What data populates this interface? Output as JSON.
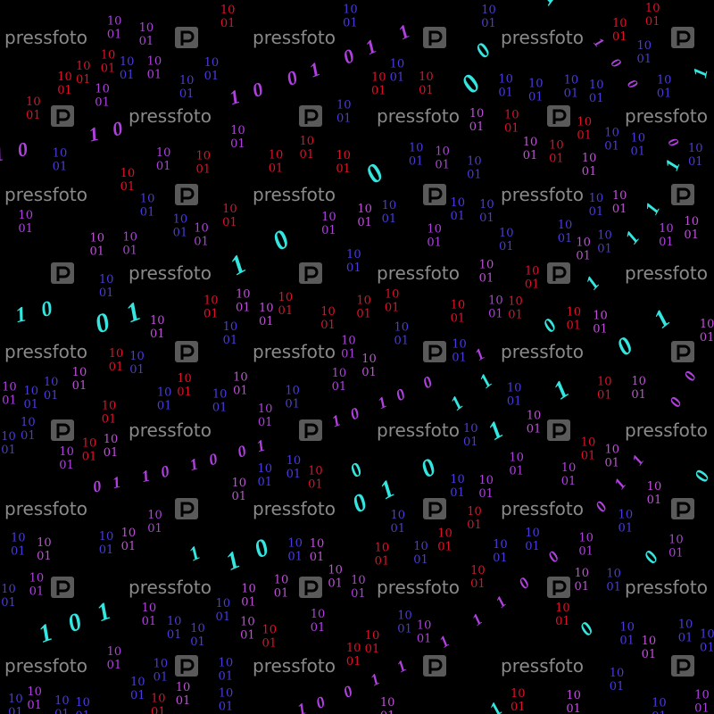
{
  "image": {
    "subject": "binary code streams",
    "background_color": "#000000",
    "digit_pairs": [
      "10",
      "01"
    ],
    "stream_pattern": "1001",
    "colors": {
      "cyan": "#33e6e0",
      "purple": "#b040e0",
      "blue": "#4a3ae0",
      "red": "#e0102a",
      "magenta": "#c050d8"
    }
  },
  "watermark": {
    "text": "pressfoto",
    "icon": "pressfoto-logo-icon"
  }
}
